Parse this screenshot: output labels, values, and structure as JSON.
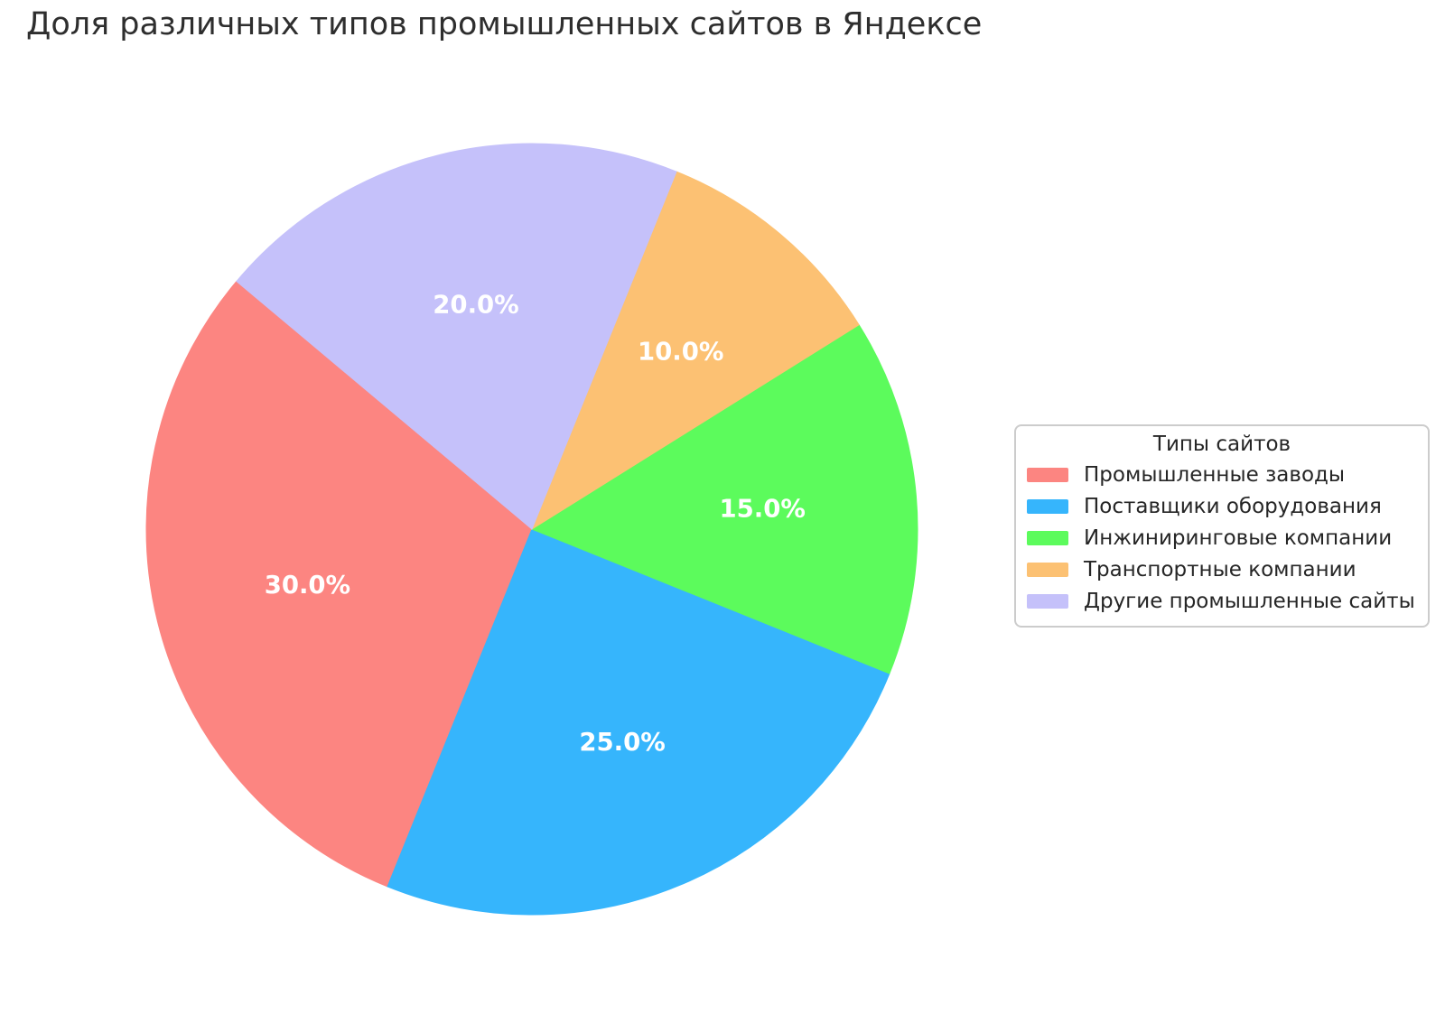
{
  "title": "Доля различных типов промышленных сайтов в Яндексе",
  "chart_data": {
    "type": "pie",
    "title": "Доля различных типов промышленных сайтов в Яндексе",
    "legend_title": "Типы сайтов",
    "legend_position": "center right",
    "start_angle": 140,
    "direction": "counterclockwise",
    "pct_distance": 0.6,
    "pct_label_color": "#ffffff",
    "slices": [
      {
        "id": "industrial-plants",
        "label": "Промышленные заводы",
        "value": 30.0,
        "pct_label": "30.0%",
        "color": "#FC8581"
      },
      {
        "id": "equipment-suppliers",
        "label": "Поставщики оборудования",
        "value": 25.0,
        "pct_label": "25.0%",
        "color": "#36B5FC"
      },
      {
        "id": "engineering-companies",
        "label": "Инжиниринговые компании",
        "value": 15.0,
        "pct_label": "15.0%",
        "color": "#5CFB5C"
      },
      {
        "id": "transport-companies",
        "label": "Транспортные компании",
        "value": 10.0,
        "pct_label": "10.0%",
        "color": "#FCC173"
      },
      {
        "id": "other-industrial-sites",
        "label": "Другие промышленные сайты",
        "value": 20.0,
        "pct_label": "20.0%",
        "color": "#C5C1FA"
      }
    ]
  }
}
